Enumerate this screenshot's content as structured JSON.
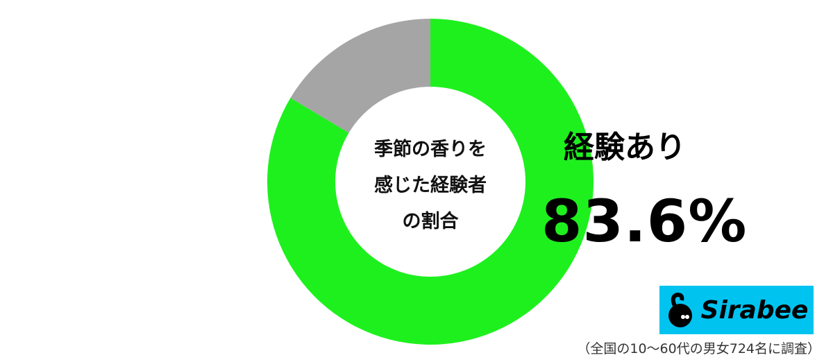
{
  "chart_data": {
    "type": "pie",
    "variant": "donut",
    "center_label_lines": [
      "季節の香りを",
      "感じた経験者",
      "の割合"
    ],
    "slices": [
      {
        "name": "経験あり",
        "value": 83.6,
        "color": "#1ef01e"
      },
      {
        "value": 16.4,
        "color": "#a5a5a5"
      }
    ],
    "highlight": {
      "label": "経験あり",
      "value_text": "83.6%"
    }
  },
  "logo": {
    "text": "Sirabee",
    "color": "#00c3f0"
  },
  "footnote": "（全国の10〜60代の男女724名に調査）"
}
